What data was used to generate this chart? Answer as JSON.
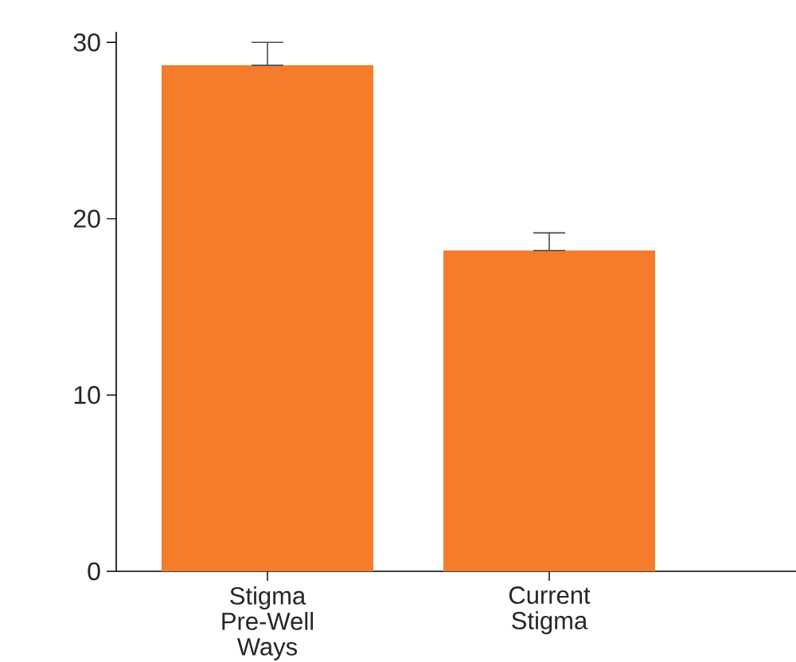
{
  "chart_data": {
    "type": "bar",
    "categories": [
      "Stigma Pre-Well Ways",
      "Current Stigma"
    ],
    "values": [
      28.7,
      18.2
    ],
    "errors": [
      [
        28.7,
        30.0
      ],
      [
        18.2,
        19.2
      ]
    ],
    "color": "#f47c2a",
    "ylim": [
      0,
      30.6
    ],
    "yticks": [
      0,
      10,
      20,
      30
    ],
    "grid": false
  }
}
